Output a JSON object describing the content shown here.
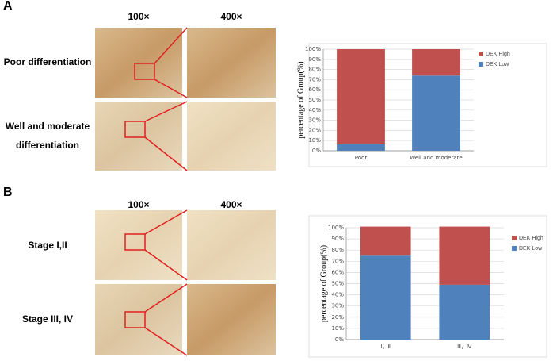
{
  "panels": [
    {
      "label": "A",
      "magnifications": [
        "100×",
        "400×"
      ],
      "rows": [
        [
          "Poor differentiation"
        ],
        [
          "Well and moderate",
          "differentiation"
        ]
      ]
    },
    {
      "label": "B",
      "magnifications": [
        "100×",
        "400×"
      ],
      "rows": [
        [
          "Stage I,II"
        ],
        [
          "Stage III, IV"
        ]
      ]
    }
  ],
  "chart_data": [
    {
      "type": "bar",
      "stacked": true,
      "ylabel": "percentage of Group(%)",
      "categories": [
        "Poor",
        "Well and moderate"
      ],
      "series": [
        {
          "name": "DEK High",
          "color": "#c0504d",
          "values": [
            93,
            26
          ]
        },
        {
          "name": "DEK Low",
          "color": "#4f81bd",
          "values": [
            7,
            74
          ]
        }
      ],
      "ylim": [
        0,
        100
      ],
      "yticks": [
        {
          "value": 0,
          "label": "0%"
        },
        {
          "value": 10,
          "label": "10%"
        },
        {
          "value": 20,
          "label": "20%"
        },
        {
          "value": 30,
          "label": "30%"
        },
        {
          "value": 40,
          "label": "40%"
        },
        {
          "value": 50,
          "label": "50%"
        },
        {
          "value": 60,
          "label": "60%"
        },
        {
          "value": 70,
          "label": "70%"
        },
        {
          "value": 80,
          "label": "80%"
        },
        {
          "value": 90,
          "label": "90%"
        },
        {
          "value": 100,
          "label": "100%"
        }
      ],
      "legend": "upper right"
    },
    {
      "type": "bar",
      "stacked": true,
      "ylabel": "percentage of Group(%)",
      "categories": [
        "Ⅰ，Ⅱ",
        "Ⅲ，Ⅳ"
      ],
      "series": [
        {
          "name": "DEK High",
          "color": "#c0504d",
          "values": [
            26,
            52
          ]
        },
        {
          "name": "DEK Low",
          "color": "#4f81bd",
          "values": [
            75,
            49
          ]
        }
      ],
      "ylim": [
        0,
        100
      ],
      "yticks": [
        {
          "value": 0,
          "label": "0%"
        },
        {
          "value": 10,
          "label": "10%"
        },
        {
          "value": 20,
          "label": "20%"
        },
        {
          "value": 30,
          "label": "30%"
        },
        {
          "value": 40,
          "label": "40%"
        },
        {
          "value": 50,
          "label": "50%"
        },
        {
          "value": 60,
          "label": "60%"
        },
        {
          "value": 70,
          "label": "70%"
        },
        {
          "value": 80,
          "label": "80%"
        },
        {
          "value": 90,
          "label": "90%"
        },
        {
          "value": 100,
          "label": "100%"
        }
      ],
      "legend": "upper right"
    }
  ]
}
